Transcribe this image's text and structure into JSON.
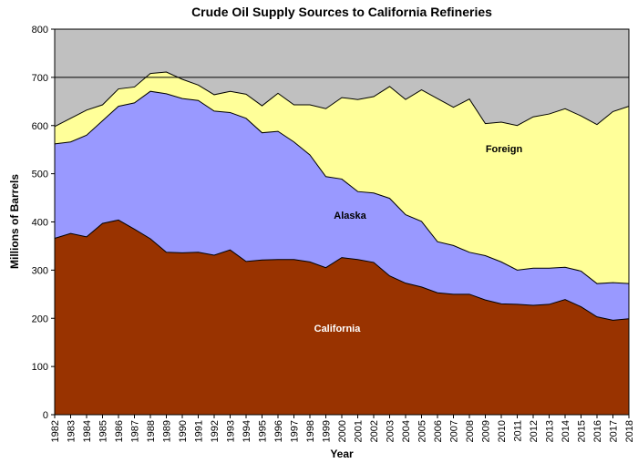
{
  "chart_data": {
    "type": "area",
    "stacked": true,
    "title": "Crude Oil Supply Sources to California Refineries",
    "xlabel": "Year",
    "ylabel": "Millions of Barrels",
    "ylim": [
      0,
      800
    ],
    "yticks": [
      0,
      100,
      200,
      300,
      400,
      500,
      600,
      700,
      800
    ],
    "grid": "line at 700 only",
    "legend": "none (inline labels)",
    "background_color": "#C0C0C0",
    "categories": [
      "1982",
      "1983",
      "1984",
      "1985",
      "1986",
      "1987",
      "1988",
      "1989",
      "1990",
      "1991",
      "1992",
      "1993",
      "1994",
      "1995",
      "1996",
      "1997",
      "1998",
      "1999",
      "2000",
      "2001",
      "2002",
      "2003",
      "2004",
      "2005",
      "2006",
      "2007",
      "2008",
      "2009",
      "2010",
      "2011",
      "2012",
      "2013",
      "2014",
      "2015",
      "2016",
      "2017",
      "2018"
    ],
    "series": [
      {
        "name": "California",
        "color": "#993300",
        "label_color": "#FFFFFF",
        "values": [
          366,
          376,
          369,
          397,
          404,
          385,
          365,
          337,
          336,
          337,
          331,
          342,
          318,
          321,
          322,
          322,
          317,
          305,
          326,
          322,
          316,
          288,
          273,
          265,
          253,
          250,
          250,
          238,
          230,
          229,
          227,
          229,
          239,
          224,
          203,
          196,
          199
        ]
      },
      {
        "name": "Alaska",
        "color": "#9999FF",
        "label_color": "#000000",
        "values": [
          196,
          190,
          211,
          213,
          236,
          262,
          306,
          329,
          320,
          315,
          299,
          285,
          297,
          264,
          266,
          244,
          222,
          189,
          163,
          141,
          144,
          161,
          142,
          136,
          106,
          101,
          87,
          92,
          87,
          71,
          77,
          75,
          67,
          74,
          69,
          78,
          73
        ]
      },
      {
        "name": "Foreign",
        "color": "#FFFF99",
        "label_color": "#000000",
        "values": [
          36,
          49,
          52,
          33,
          36,
          33,
          37,
          45,
          40,
          32,
          34,
          44,
          50,
          56,
          79,
          77,
          104,
          141,
          169,
          191,
          200,
          232,
          239,
          273,
          297,
          287,
          318,
          274,
          290,
          300,
          314,
          320,
          329,
          322,
          330,
          355,
          368
        ]
      }
    ]
  }
}
